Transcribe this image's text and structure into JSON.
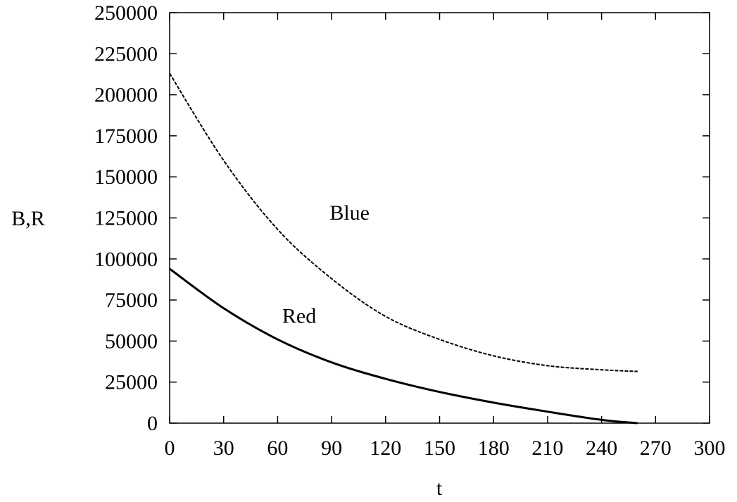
{
  "chart_data": {
    "type": "line",
    "title": "",
    "xlabel": "t",
    "ylabel": "B,R",
    "xlim": [
      0,
      300
    ],
    "ylim": [
      0,
      250000
    ],
    "xticks": [
      0,
      30,
      60,
      90,
      120,
      150,
      180,
      210,
      240,
      270,
      300
    ],
    "yticks": [
      0,
      25000,
      50000,
      75000,
      100000,
      125000,
      150000,
      175000,
      200000,
      225000,
      250000
    ],
    "grid": false,
    "series": [
      {
        "name": "Blue",
        "style": "dashed",
        "color": "#000000",
        "x": [
          0,
          30,
          60,
          90,
          120,
          150,
          180,
          210,
          240,
          260
        ],
        "y": [
          213000,
          160000,
          118000,
          88000,
          65000,
          51000,
          41000,
          35000,
          32500,
          31500
        ]
      },
      {
        "name": "Red",
        "style": "solid",
        "color": "#000000",
        "x": [
          0,
          30,
          60,
          90,
          120,
          150,
          180,
          210,
          240,
          260
        ],
        "y": [
          94000,
          70000,
          51000,
          37000,
          27000,
          19000,
          12500,
          7000,
          2000,
          0
        ]
      }
    ],
    "annotations": [
      {
        "text": "Blue",
        "x": 100,
        "y": 124000,
        "series": "Blue"
      },
      {
        "text": "Red",
        "x": 72,
        "y": 61000,
        "series": "Red"
      }
    ]
  }
}
